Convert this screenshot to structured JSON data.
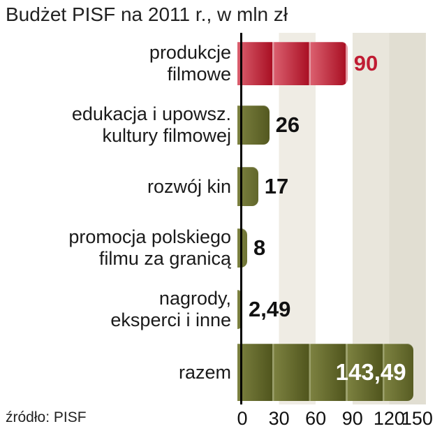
{
  "title": "Budżet PISF na 2011 r., w mln zł",
  "source": "źródło: PISF",
  "chart_data": {
    "type": "bar",
    "orientation": "horizontal",
    "title": "Budżet PISF na 2011 r., w mln zł",
    "unit": "mln zł",
    "xlim": [
      0,
      150
    ],
    "ticks": [
      "0",
      "30",
      "60",
      "90",
      "120",
      "150"
    ],
    "grid": "vertical-stripes-every-30",
    "colors": {
      "highlight_bar": "#c01c33",
      "default_bar": "#676c2d",
      "value_inside_text": "#ffffff"
    },
    "rows": [
      {
        "label": "produkcje\nfilmowe",
        "value": 90,
        "value_label": "90",
        "color": "red"
      },
      {
        "label": "edukacja i upowsz.\nkultury filmowej",
        "value": 26,
        "value_label": "26",
        "color": "olive"
      },
      {
        "label": "rozwój kin",
        "value": 17,
        "value_label": "17",
        "color": "olive"
      },
      {
        "label": "promocja polskiego\nfilmu za granicą",
        "value": 8,
        "value_label": "8",
        "color": "olive"
      },
      {
        "label": "nagrody,\neksperci i inne",
        "value": 2.49,
        "value_label": "2,49",
        "color": "olive"
      },
      {
        "label": "razem",
        "value": 143.49,
        "value_label": "143,49",
        "color": "olive",
        "value_inside": true
      }
    ]
  }
}
